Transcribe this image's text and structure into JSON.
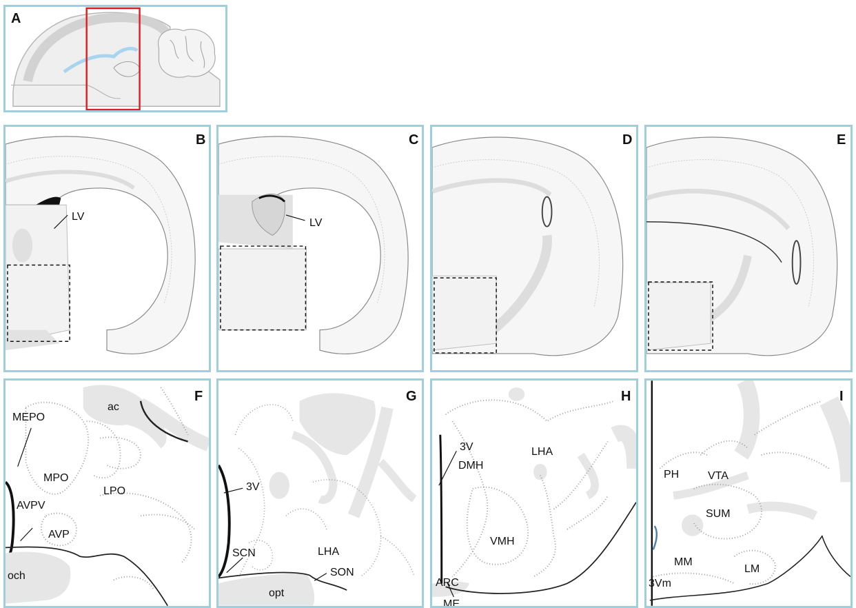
{
  "panels": {
    "A": {
      "letter": "A"
    },
    "B": {
      "letter": "B",
      "labels": {
        "lv": "LV"
      }
    },
    "C": {
      "letter": "C",
      "labels": {
        "lv": "LV"
      }
    },
    "D": {
      "letter": "D"
    },
    "E": {
      "letter": "E"
    },
    "F": {
      "letter": "F",
      "labels": {
        "ac": "ac",
        "mepo": "MEPO",
        "mpo": "MPO",
        "lpo": "LPO",
        "avpv": "AVPV",
        "avp": "AVP",
        "och": "och"
      }
    },
    "G": {
      "letter": "G",
      "labels": {
        "v3": "3V",
        "scn": "SCN",
        "lha": "LHA",
        "son": "SON",
        "opt": "opt"
      }
    },
    "H": {
      "letter": "H",
      "labels": {
        "v3": "3V",
        "dmh": "DMH",
        "lha": "LHA",
        "vmh": "VMH",
        "arc": "ARC",
        "me": "ME"
      }
    },
    "I": {
      "letter": "I",
      "labels": {
        "ph": "PH",
        "vta": "VTA",
        "sum": "SUM",
        "mm": "MM",
        "lm": "LM",
        "v3m": "3Vm"
      }
    }
  },
  "colors": {
    "border": "#9fcfdd",
    "region": "#e6e6e6",
    "outline": "#bfbfbf",
    "box": "#e31b1b",
    "ventricle": "#a8d4ee"
  }
}
